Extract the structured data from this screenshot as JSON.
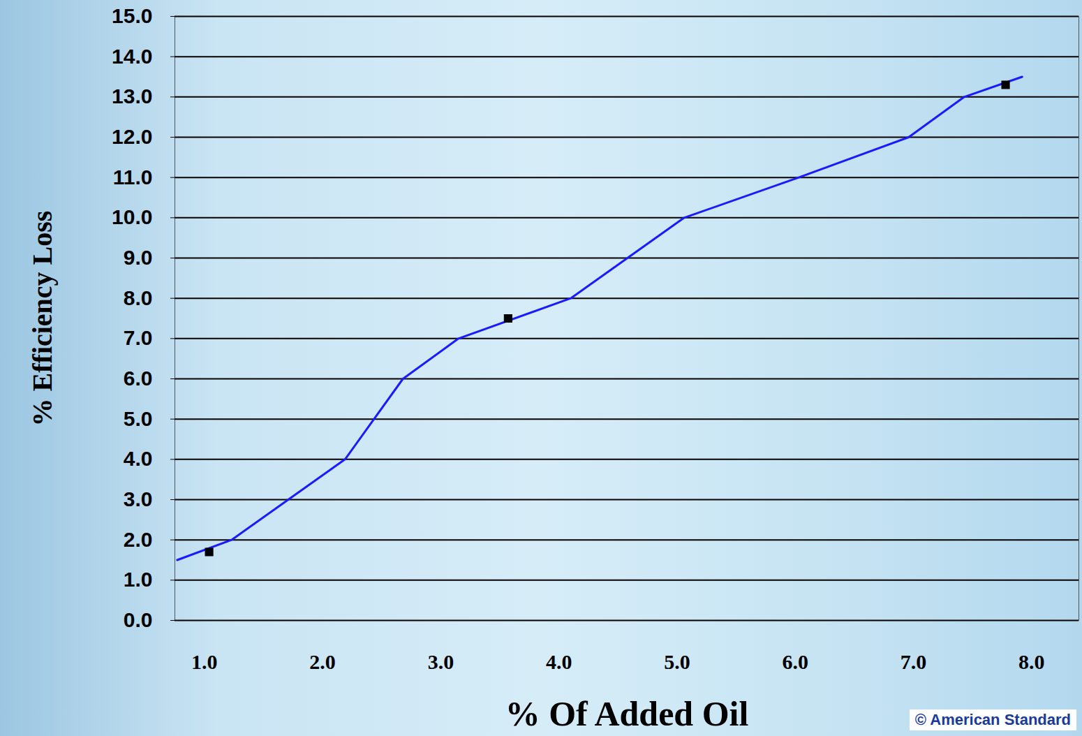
{
  "chart_data": {
    "type": "line",
    "x_label": "% Of Added Oil",
    "y_label": "% Efficiency Loss",
    "annotations": [
      "© American Standard"
    ],
    "xlim": [
      0.75,
      8.4
    ],
    "xticks": [
      1,
      2,
      3,
      4,
      5,
      6,
      7,
      8
    ],
    "ylim": [
      0,
      15
    ],
    "yticks": [
      0,
      1,
      2,
      3,
      4,
      5,
      6,
      7,
      8,
      9,
      10,
      11,
      12,
      13,
      14,
      15
    ],
    "grid": true,
    "series": [
      {
        "type": "line",
        "color": "#1a1aff",
        "line_style": "solid",
        "x": [
          0.77,
          1.23,
          2.19,
          2.68,
          3.15,
          4.1,
          5.06,
          6.03,
          6.96,
          7.43,
          7.92
        ],
        "values": [
          1.5,
          2,
          4,
          6,
          7,
          8,
          10,
          11,
          12,
          13,
          13.5
        ]
      },
      {
        "type": "scatter",
        "color": "#000000",
        "marker": "square",
        "x": [
          1.04,
          3.57,
          7.78
        ],
        "values": [
          1.7,
          7.5,
          13.3
        ]
      }
    ]
  }
}
